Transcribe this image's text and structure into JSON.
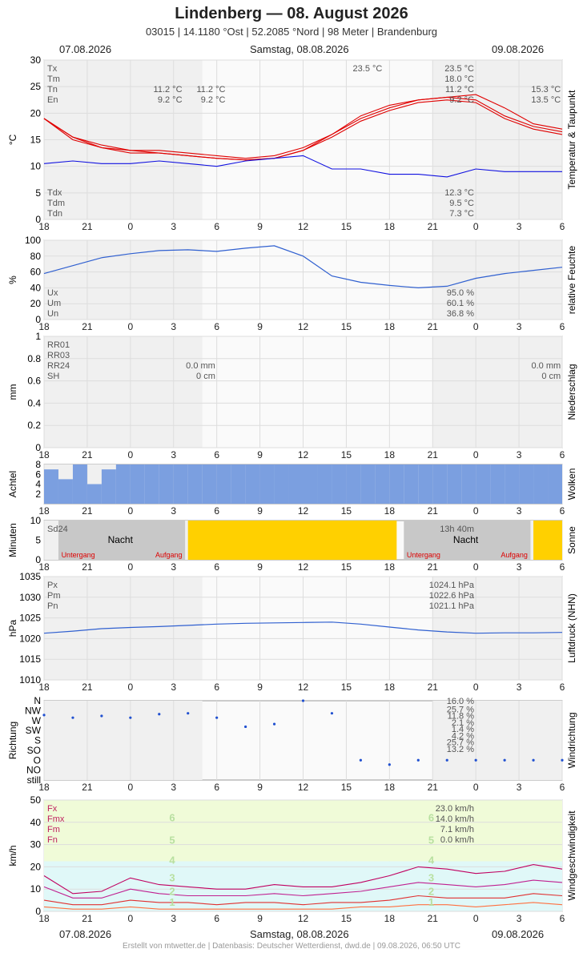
{
  "header": {
    "title": "Lindenberg  —  08. August 2026",
    "subtitle": "03015  |  14.1180 °Ost  |  52.2085 °Nord  |  98 Meter  |  Brandenburg"
  },
  "dates": {
    "left": "07.08.2026",
    "center": "Samstag, 08.08.2026",
    "right": "09.08.2026"
  },
  "footer": "Erstellt von mtwetter.de | Datenbasis: Deutscher Wetterdienst, dwd.de | 09.08.2026, 06:50 UTC",
  "colors": {
    "temp": "#e00000",
    "dew": "#1010e0",
    "humidity": "#3060d0",
    "clouds": "#7b9fe0",
    "sun": "#ffd000",
    "night": "#c8c8c8",
    "wind_fx": "#c00060",
    "wind_fmx": "#c02090",
    "wind_fm": "#e03030",
    "wind_fn": "#ff7040",
    "bft_zone_low": "#e0f8f8",
    "bft_zone_high": "#f0fbd8"
  },
  "x_ticks": [
    "18",
    "21",
    "0",
    "3",
    "6",
    "9",
    "12",
    "15",
    "18",
    "21",
    "0",
    "3",
    "6"
  ],
  "chart_data": [
    {
      "type": "line",
      "title": "Temperatur & Taupunkt",
      "ylabel": "°C",
      "ylim": [
        0,
        30
      ],
      "yticks": [
        0,
        5,
        10,
        15,
        20,
        25,
        30
      ],
      "x_hours_from_start": [
        0,
        2,
        4,
        6,
        8,
        10,
        12,
        14,
        16,
        18,
        20,
        22,
        24,
        26,
        28,
        30,
        32,
        34,
        36
      ],
      "series": [
        {
          "name": "Tx",
          "values": [
            19.0,
            15.5,
            14.0,
            13.0,
            13.0,
            12.5,
            12.0,
            11.5,
            12.0,
            13.5,
            16.0,
            19.5,
            21.5,
            22.5,
            23.0,
            23.5,
            21.0,
            18.0,
            17.0
          ]
        },
        {
          "name": "Tm",
          "values": [
            19.0,
            15.5,
            13.5,
            13.0,
            12.5,
            12.0,
            11.5,
            11.2,
            11.5,
            13.0,
            16.0,
            19.0,
            21.0,
            22.5,
            23.0,
            22.5,
            19.5,
            17.5,
            16.5
          ]
        },
        {
          "name": "Tn",
          "values": [
            19.0,
            15.0,
            13.5,
            12.5,
            12.5,
            12.0,
            11.5,
            11.2,
            11.5,
            13.0,
            15.5,
            18.5,
            20.5,
            22.0,
            22.5,
            22.0,
            19.0,
            17.0,
            16.0
          ]
        },
        {
          "name": "Tdm",
          "values": [
            10.5,
            11.0,
            10.5,
            10.5,
            11.0,
            10.5,
            10.0,
            11.0,
            11.5,
            12.0,
            9.5,
            9.5,
            8.5,
            8.5,
            8.0,
            9.5,
            9.0,
            9.0,
            9.0
          ]
        }
      ],
      "legend_top": [
        {
          "label": "Tx",
          "val": "23.5 °C"
        },
        {
          "label": "Tm",
          "val": "18.0 °C"
        },
        {
          "label": "Tn",
          "val": "11.2 °C"
        },
        {
          "label": "En",
          "val": "9.2 °C"
        }
      ],
      "legend_bottom": [
        {
          "label": "Tdx",
          "val": "12.3 °C"
        },
        {
          "label": "Tdm",
          "val": "9.5 °C"
        },
        {
          "label": "Tdn",
          "val": "7.3 °C"
        }
      ],
      "annotations": [
        {
          "hour": 9.6,
          "lines": [
            "11.2 °C",
            "9.2 °C"
          ]
        },
        {
          "hour": 12.6,
          "lines": [
            "11.2 °C",
            "9.2 °C"
          ]
        },
        {
          "hour": 35.9,
          "lines": [
            "15.3 °C",
            "13.5 °C"
          ]
        },
        {
          "hour": 23.5,
          "lines": [
            "23.5 °C"
          ]
        }
      ],
      "side_label": "Temperatur & Taupunkt"
    },
    {
      "type": "line",
      "title": "relative Feuchte",
      "ylabel": "%",
      "ylim": [
        0,
        100
      ],
      "yticks": [
        0,
        20,
        40,
        60,
        80,
        100
      ],
      "x_hours_from_start": [
        0,
        2,
        4,
        6,
        8,
        10,
        12,
        14,
        16,
        18,
        20,
        22,
        24,
        26,
        28,
        30,
        32,
        34,
        36
      ],
      "series": [
        {
          "name": "Um",
          "values": [
            58,
            68,
            78,
            83,
            87,
            88,
            86,
            90,
            93,
            80,
            55,
            47,
            43,
            40,
            42,
            52,
            58,
            62,
            66
          ]
        }
      ],
      "legend_bottom": [
        {
          "label": "Ux",
          "val": "95.0 %"
        },
        {
          "label": "Um",
          "val": "60.1 %"
        },
        {
          "label": "Un",
          "val": "36.8 %"
        }
      ],
      "side_label": "relative Feuchte"
    },
    {
      "type": "bar",
      "title": "Niederschlag",
      "ylabel": "mm",
      "ylim": [
        0,
        1
      ],
      "yticks": [
        0,
        0.2,
        0.4,
        0.6,
        0.8,
        1.0
      ],
      "legend_top": [
        {
          "label": "RR01",
          "val": ""
        },
        {
          "label": "RR03",
          "val": ""
        },
        {
          "label": "RR24",
          "val": ""
        },
        {
          "label": "SH",
          "val": ""
        }
      ],
      "annotations": [
        {
          "hour": 11.9,
          "lines": [
            "0.0 mm",
            "0 cm"
          ]
        },
        {
          "hour": 35.9,
          "lines": [
            "0.0 mm",
            "0 cm"
          ]
        }
      ],
      "side_label": "Niederschlag"
    },
    {
      "type": "bar",
      "title": "Wolken",
      "ylabel": "Achtel",
      "ylim": [
        0,
        8
      ],
      "yticks": [
        2,
        4,
        6,
        8
      ],
      "hourly_okta": [
        7,
        5,
        8,
        4,
        7,
        8,
        8,
        8,
        8,
        8,
        8,
        8,
        8,
        8,
        8,
        8,
        8,
        8,
        8,
        8,
        8,
        8,
        8,
        8,
        8,
        8,
        8,
        8,
        8,
        8,
        8,
        8,
        8,
        8,
        8,
        8
      ],
      "side_label": "Wolken"
    },
    {
      "type": "bar",
      "title": "Sonne",
      "ylabel": "Minuten",
      "ylim": [
        0,
        10
      ],
      "yticks": [
        0,
        5,
        10
      ],
      "legend_top": [
        {
          "label": "Sd24",
          "val": "13h 40m"
        }
      ],
      "night_labels": [
        "Nacht",
        "Nacht"
      ],
      "sun_events": [
        "Untergang",
        "Aufgang",
        "Untergang",
        "Aufgang"
      ],
      "side_label": "Sonne"
    },
    {
      "type": "line",
      "title": "Luftdruck (NHN)",
      "ylabel": "hPa",
      "ylim": [
        1010,
        1035
      ],
      "yticks": [
        1010,
        1015,
        1020,
        1025,
        1030,
        1035
      ],
      "x_hours_from_start": [
        0,
        2,
        4,
        6,
        8,
        10,
        12,
        14,
        16,
        18,
        20,
        22,
        24,
        26,
        28,
        30,
        32,
        34,
        36
      ],
      "series": [
        {
          "name": "Pm",
          "values": [
            1021.3,
            1021.8,
            1022.4,
            1022.7,
            1022.9,
            1023.2,
            1023.5,
            1023.7,
            1023.8,
            1023.9,
            1024.0,
            1023.5,
            1022.8,
            1022.1,
            1021.6,
            1021.3,
            1021.4,
            1021.4,
            1021.5
          ]
        }
      ],
      "legend_top": [
        {
          "label": "Px",
          "val": "1024.1 hPa"
        },
        {
          "label": "Pm",
          "val": "1022.6 hPa"
        },
        {
          "label": "Pn",
          "val": "1021.1 hPa"
        }
      ],
      "side_label": "Luftdruck (NHN)"
    },
    {
      "type": "scatter",
      "title": "Windrichtung",
      "ylabel": "Richtung",
      "ytick_labels": [
        "N",
        "NW",
        "W",
        "SW",
        "S",
        "SO",
        "O",
        "NO",
        "still"
      ],
      "distribution": [
        {
          "dir": "N",
          "val": "16.0 %"
        },
        {
          "dir": "NW",
          "val": "25.7 %"
        },
        {
          "dir": "W",
          "val": "11.8 %"
        },
        {
          "dir": "SW",
          "val": "2.1 %"
        },
        {
          "dir": "S",
          "val": "1.4 %"
        },
        {
          "dir": "SO",
          "val": "4.2 %"
        },
        {
          "dir": "O",
          "val": "25.7 %"
        },
        {
          "dir": "NO",
          "val": "13.2 %"
        }
      ],
      "x_hours_from_start": [
        0,
        2,
        4,
        6,
        8,
        10,
        12,
        14,
        16,
        18,
        20,
        22,
        24,
        26,
        28,
        30,
        32,
        34,
        36
      ],
      "dir_deg": [
        340,
        310,
        300,
        310,
        335,
        330,
        310,
        260,
        290,
        0,
        330,
        90,
        70,
        90,
        90,
        90,
        90,
        90,
        90
      ],
      "side_label": "Windrichtung"
    },
    {
      "type": "line",
      "title": "Windgeschwindigkeit",
      "ylabel": "km/h",
      "ylim": [
        0,
        50
      ],
      "yticks": [
        0,
        10,
        20,
        30,
        40,
        50
      ],
      "x_hours_from_start": [
        0,
        2,
        4,
        6,
        8,
        10,
        12,
        14,
        16,
        18,
        20,
        22,
        24,
        26,
        28,
        30,
        32,
        34,
        36
      ],
      "series": [
        {
          "name": "Fx",
          "values": [
            16,
            8,
            9,
            15,
            12,
            11,
            10,
            10,
            12,
            11,
            11,
            13,
            16,
            20,
            19,
            17,
            18,
            21,
            19
          ]
        },
        {
          "name": "Fmx",
          "values": [
            11,
            6,
            6,
            10,
            8,
            7,
            7,
            7,
            8,
            7,
            8,
            9,
            11,
            13,
            12,
            11,
            12,
            14,
            13
          ]
        },
        {
          "name": "Fm",
          "values": [
            5,
            3,
            3,
            5,
            4,
            4,
            3,
            4,
            4,
            3,
            4,
            4,
            5,
            7,
            6,
            6,
            6,
            8,
            7
          ]
        },
        {
          "name": "Fn",
          "values": [
            2,
            1,
            1,
            2,
            1,
            1,
            1,
            1,
            1,
            1,
            1,
            2,
            2,
            3,
            3,
            2,
            3,
            4,
            3
          ]
        }
      ],
      "legend_top": [
        {
          "label": "Fx",
          "val": "23.0 km/h"
        },
        {
          "label": "Fmx",
          "val": "14.0 km/h"
        },
        {
          "label": "Fm",
          "val": "7.1 km/h"
        },
        {
          "label": "Fn",
          "val": "0.0 km/h"
        }
      ],
      "bft_labels": [
        "1",
        "2",
        "3",
        "4",
        "5",
        "6"
      ],
      "side_label": "Windgeschwindigkeit"
    }
  ]
}
